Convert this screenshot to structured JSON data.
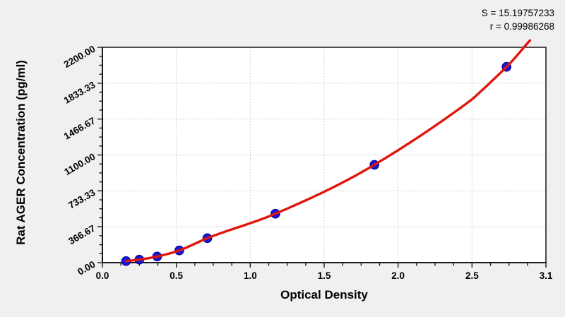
{
  "stats": {
    "s_line": "S = 15.19757233",
    "r_line": "r = 0.99986268"
  },
  "chart_data": {
    "type": "scatter",
    "title": "",
    "xlabel": "Optical Density",
    "ylabel": "Rat AGER Concentration (pg/ml)",
    "xlim": [
      0,
      3.1
    ],
    "ylim": [
      0,
      2200
    ],
    "x_tick_labels": [
      "0.0",
      "0.5",
      "1.0",
      "1.5",
      "2.0",
      "2.5",
      "3.1"
    ],
    "y_tick_labels": [
      "0.00",
      "366.67",
      "733.33",
      "1100.00",
      "1466.67",
      "1833.33",
      "2200.00"
    ],
    "grid": "dotted-major",
    "legend_position": "none",
    "series": [
      {
        "name": "standard-points",
        "type": "scatter",
        "x": [
          0.16,
          0.25,
          0.37,
          0.52,
          0.71,
          1.17,
          1.84,
          2.78
        ],
        "y": [
          15.6,
          31.25,
          62.5,
          125,
          250,
          500,
          1000,
          2000
        ]
      },
      {
        "name": "fitted-curve",
        "type": "line",
        "x": [
          0.16,
          0.25,
          0.37,
          0.52,
          0.71,
          1.17,
          1.84,
          2.78,
          2.97
        ],
        "y": [
          15.6,
          31.25,
          62.5,
          125,
          250,
          500,
          1000,
          2000,
          2270
        ]
      }
    ],
    "fit_stats": {
      "S": 15.19757233,
      "r": 0.99986268
    }
  },
  "colors": {
    "background": "#f0f0f0",
    "plot_bg": "#ffffff",
    "curve": "#e2150c",
    "point": "#1717d2",
    "point_edge": "#000099",
    "grid": "#c4c4c4",
    "axis": "#1a1a1a",
    "frame": "#4d4d4d",
    "text": "#000000"
  }
}
